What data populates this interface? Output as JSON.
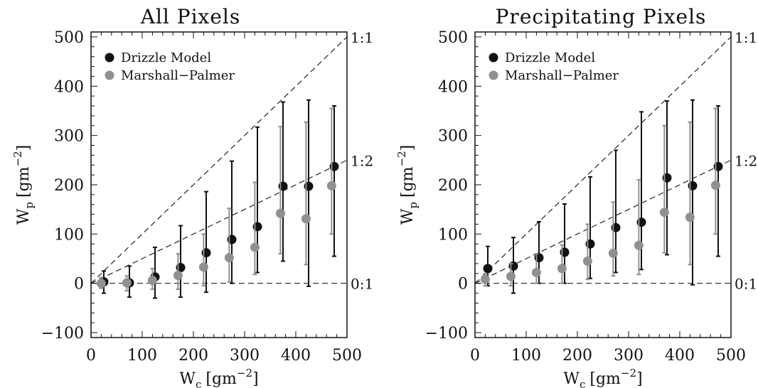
{
  "chart_data": [
    {
      "type": "scatter",
      "title": "All Pixels",
      "xlabel": "W",
      "xlabel_sub": "c",
      "ylabel": "W",
      "ylabel_sub": "p",
      "unit": "[gm",
      "unit_sup": "−2",
      "unit_close": "]",
      "xlim": [
        0,
        500
      ],
      "ylim": [
        -110,
        510
      ],
      "xticks": [
        "0",
        "100",
        "200",
        "300",
        "400",
        "500"
      ],
      "yticks": [
        "−100",
        "0",
        "100",
        "200",
        "300",
        "400",
        "500"
      ],
      "reference_lines": [
        {
          "label": "1:1",
          "slope": 1
        },
        {
          "label": "1:2",
          "slope": 0.5
        },
        {
          "label": "0:1",
          "slope": 0
        }
      ],
      "legend_position": "top-left",
      "series": [
        {
          "name": "Drizzle Model",
          "color": "#111111",
          "x": [
            25,
            75,
            125,
            175,
            225,
            275,
            325,
            375,
            425,
            475
          ],
          "y": [
            3,
            1,
            13,
            32,
            62,
            89,
            115,
            197,
            197,
            237
          ],
          "err_low": [
            -20,
            -28,
            -30,
            -28,
            -18,
            0,
            22,
            45,
            -6,
            55
          ],
          "err_high": [
            25,
            35,
            73,
            117,
            186,
            248,
            317,
            368,
            372,
            360
          ]
        },
        {
          "name": "Marshall−Palmer",
          "color": "#909090",
          "x": [
            20,
            70,
            120,
            170,
            220,
            270,
            320,
            370,
            420,
            470
          ],
          "y": [
            0,
            1,
            6,
            16,
            33,
            52,
            73,
            142,
            131,
            198
          ],
          "err_low": [
            -10,
            -15,
            -12,
            -12,
            -5,
            3,
            18,
            60,
            38,
            100
          ],
          "err_high": [
            12,
            15,
            30,
            60,
            100,
            152,
            205,
            318,
            327,
            355
          ]
        }
      ]
    },
    {
      "type": "scatter",
      "title": "Precipitating Pixels",
      "xlabel": "W",
      "xlabel_sub": "c",
      "ylabel": "W",
      "ylabel_sub": "p",
      "unit": "[gm",
      "unit_sup": "−2",
      "unit_close": "]",
      "xlim": [
        0,
        500
      ],
      "ylim": [
        -110,
        510
      ],
      "xticks": [
        "0",
        "100",
        "200",
        "300",
        "400",
        "500"
      ],
      "yticks": [
        "−100",
        "0",
        "100",
        "200",
        "300",
        "400",
        "500"
      ],
      "reference_lines": [
        {
          "label": "1:1",
          "slope": 1
        },
        {
          "label": "1:2",
          "slope": 0.5
        },
        {
          "label": "0:1",
          "slope": 0
        }
      ],
      "legend_position": "top-left",
      "series": [
        {
          "name": "Drizzle Model",
          "color": "#111111",
          "x": [
            25,
            75,
            125,
            175,
            225,
            275,
            325,
            375,
            425,
            475
          ],
          "y": [
            30,
            35,
            52,
            63,
            80,
            113,
            124,
            214,
            198,
            237
          ],
          "err_low": [
            -5,
            -20,
            0,
            0,
            10,
            22,
            28,
            58,
            -3,
            55
          ],
          "err_high": [
            75,
            93,
            125,
            161,
            216,
            270,
            348,
            370,
            372,
            360
          ]
        },
        {
          "name": "Marshall−Palmer",
          "color": "#909090",
          "x": [
            20,
            70,
            120,
            170,
            220,
            270,
            320,
            370,
            420,
            470
          ],
          "y": [
            8,
            14,
            22,
            30,
            45,
            61,
            77,
            144,
            134,
            199
          ],
          "err_low": [
            -5,
            -5,
            0,
            0,
            8,
            15,
            18,
            62,
            38,
            100
          ],
          "err_high": [
            20,
            40,
            60,
            78,
            120,
            165,
            210,
            320,
            327,
            355
          ]
        }
      ]
    }
  ]
}
